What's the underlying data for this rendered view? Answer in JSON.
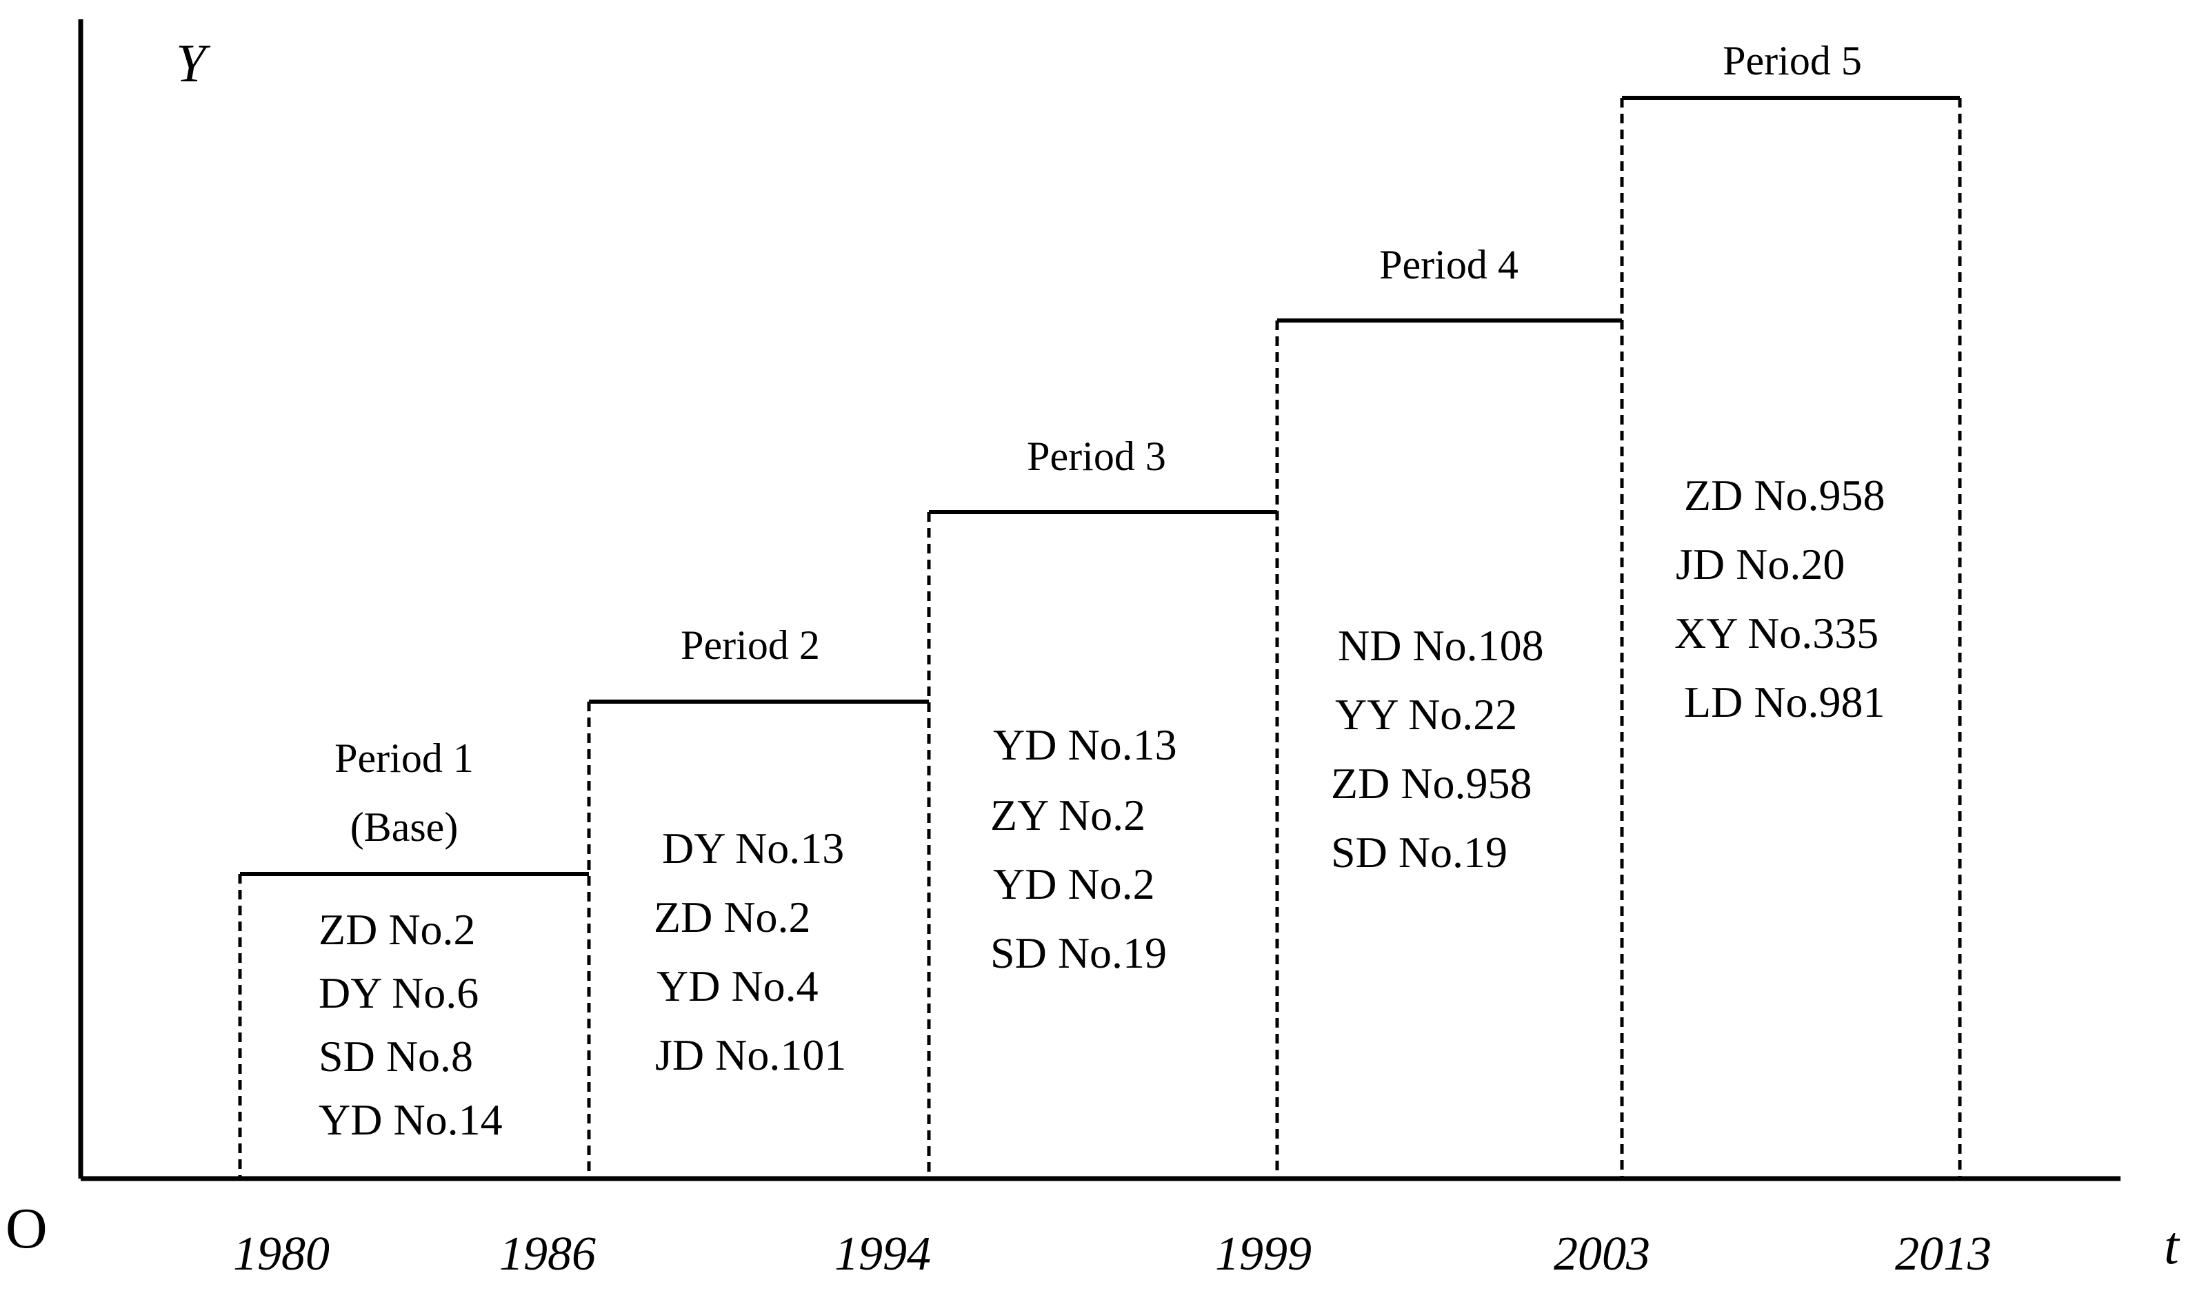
{
  "axes": {
    "y_label": "Y",
    "x_label": "t",
    "origin_label": "O"
  },
  "years": [
    "1980",
    "1986",
    "1994",
    "1999",
    "2003",
    "2013"
  ],
  "periods": [
    {
      "label": "Period 1",
      "sublabel": "(Base)",
      "varieties": [
        "ZD No.2",
        "DY No.6",
        "SD No.8",
        "YD No.14"
      ]
    },
    {
      "label": "Period 2",
      "varieties": [
        "DY No.13",
        "ZD No.2",
        "YD No.4",
        "JD No.101"
      ]
    },
    {
      "label": "Period 3",
      "varieties": [
        "YD No.13",
        "ZY No.2",
        "YD No.2",
        "SD No.19"
      ]
    },
    {
      "label": "Period 4",
      "varieties": [
        "ND No.108",
        "YY No.22",
        "ZD No.958",
        "SD No.19"
      ]
    },
    {
      "label": "Period 5",
      "varieties": [
        "ZD No.958",
        "JD No.20",
        "XY No.335",
        "LD No.981"
      ]
    }
  ]
}
